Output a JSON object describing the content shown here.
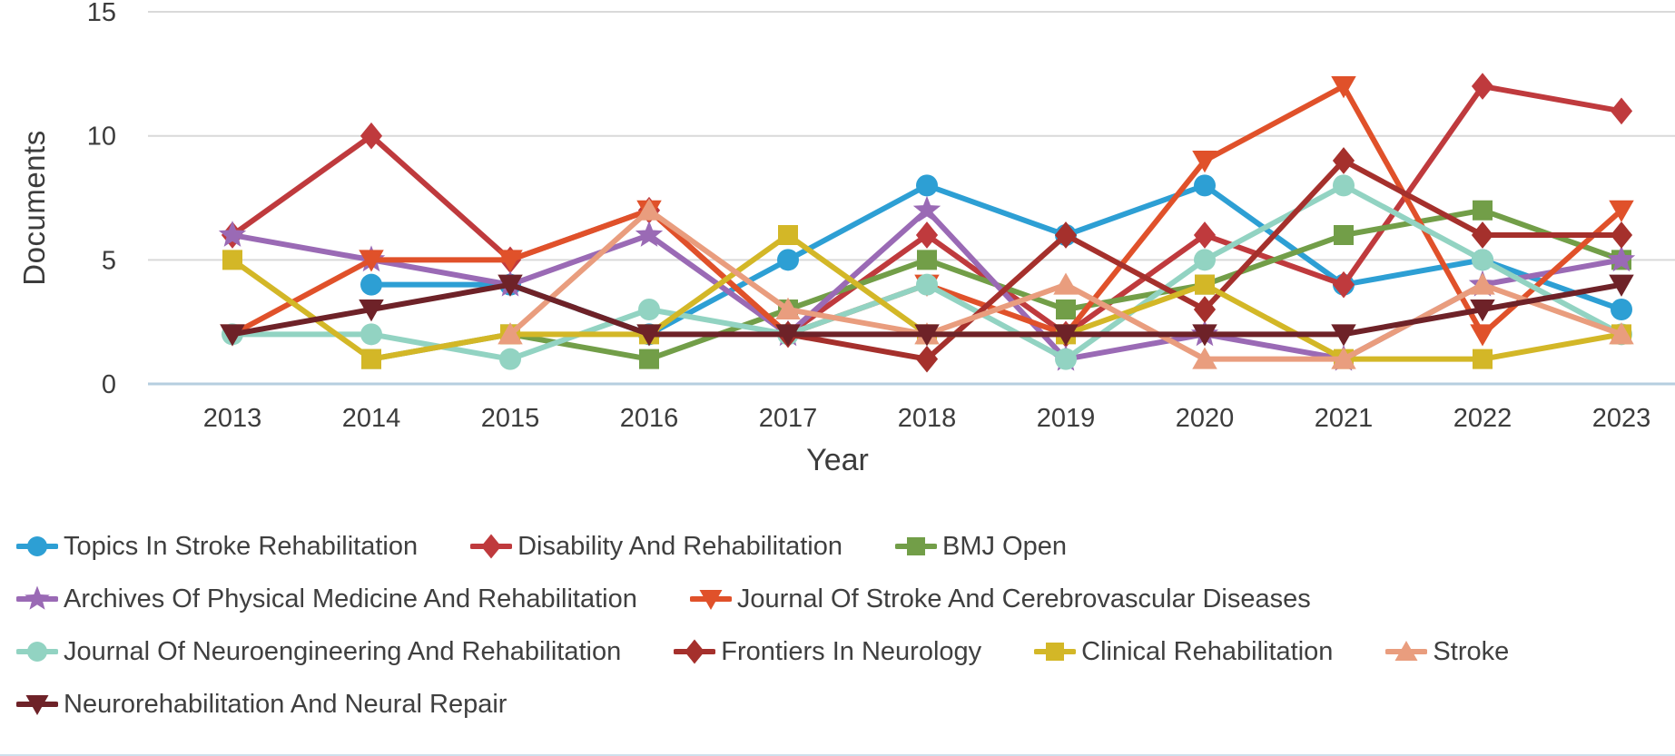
{
  "figure": {
    "ylabel": "Documents",
    "xlabel": "Year"
  },
  "chart_data": {
    "type": "line",
    "x": [
      2013,
      2014,
      2015,
      2016,
      2017,
      2018,
      2019,
      2020,
      2021,
      2022,
      2023
    ],
    "xlabel": "Year",
    "ylabel": "Documents",
    "ylim": [
      0,
      15
    ],
    "yticks": [
      0,
      5,
      10,
      15
    ],
    "grid": "horizontal",
    "legend_position": "bottom",
    "gridline_color": "#d9d9d9",
    "baseline_color": "#b5cedf",
    "series": [
      {
        "name": "Topics In Stroke Rehabilitation",
        "color": "#2d9fd4",
        "marker": "circle",
        "values": [
          null,
          4,
          4,
          2,
          5,
          8,
          6,
          8,
          4,
          5,
          3
        ]
      },
      {
        "name": "Disability And Rehabilitation",
        "color": "#bf3a3d",
        "marker": "diamond",
        "values": [
          6,
          10,
          5,
          7,
          2,
          6,
          2,
          6,
          4,
          12,
          11
        ]
      },
      {
        "name": "BMJ Open",
        "color": "#729e48",
        "marker": "square",
        "values": [
          null,
          1,
          2,
          1,
          3,
          5,
          3,
          4,
          6,
          7,
          5
        ]
      },
      {
        "name": "Archives Of Physical Medicine And Rehabilitation",
        "color": "#9a6ab5",
        "marker": "star",
        "values": [
          6,
          5,
          4,
          6,
          2,
          7,
          1,
          2,
          1,
          4,
          5
        ]
      },
      {
        "name": "Journal Of Stroke And Cerebrovascular Diseases",
        "color": "#e0512a",
        "marker": "triangle-down",
        "values": [
          2,
          5,
          5,
          7,
          2,
          4,
          2,
          9,
          12,
          2,
          7
        ]
      },
      {
        "name": "Journal Of Neuroengineering And Rehabilitation",
        "color": "#92d3c2",
        "marker": "circle",
        "values": [
          2,
          2,
          1,
          3,
          2,
          4,
          1,
          5,
          8,
          5,
          2
        ]
      },
      {
        "name": "Frontiers In Neurology",
        "color": "#a5302c",
        "marker": "diamond",
        "values": [
          null,
          null,
          null,
          null,
          2,
          1,
          6,
          3,
          9,
          6,
          6
        ]
      },
      {
        "name": "Clinical Rehabilitation",
        "color": "#d3b727",
        "marker": "square",
        "values": [
          5,
          1,
          2,
          2,
          6,
          2,
          2,
          4,
          1,
          1,
          2
        ]
      },
      {
        "name": "Stroke",
        "color": "#e99d7e",
        "marker": "triangle-up",
        "values": [
          null,
          null,
          2,
          7,
          3,
          2,
          4,
          1,
          1,
          4,
          2
        ]
      },
      {
        "name": "Neurorehabilitation And Neural Repair",
        "color": "#6e2228",
        "marker": "triangle-down",
        "values": [
          2,
          3,
          4,
          2,
          2,
          2,
          2,
          2,
          2,
          3,
          4
        ]
      }
    ],
    "legend_rows": [
      [
        0,
        1,
        2
      ],
      [
        3,
        4
      ],
      [
        5,
        6,
        7,
        8
      ],
      [
        9
      ]
    ]
  }
}
